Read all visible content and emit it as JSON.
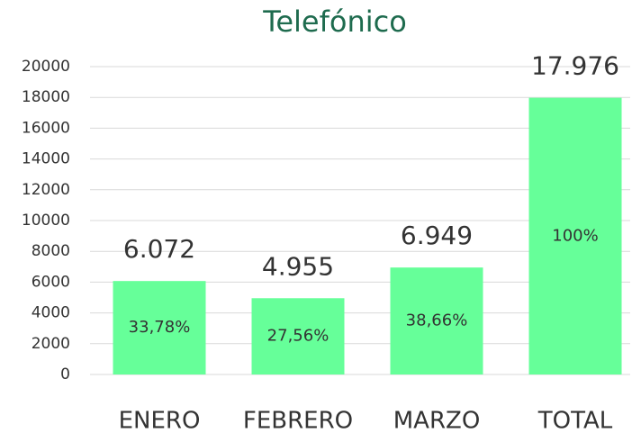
{
  "chart_data": {
    "type": "bar",
    "title": "Telefónico",
    "categories": [
      "ENERO",
      "FEBRERO",
      "MARZO",
      "TOTAL"
    ],
    "values": [
      6072,
      4955,
      6949,
      17976
    ],
    "value_labels": [
      "6.072",
      "4.955",
      "6.949",
      "17.976"
    ],
    "share_labels": [
      "33,78%",
      "27,56%",
      "38,66%",
      "100%"
    ],
    "color": "#66ff99",
    "ylim": [
      0,
      20000
    ],
    "yticks": [
      0,
      2000,
      4000,
      6000,
      8000,
      10000,
      12000,
      14000,
      16000,
      18000,
      20000
    ],
    "grid": true
  }
}
